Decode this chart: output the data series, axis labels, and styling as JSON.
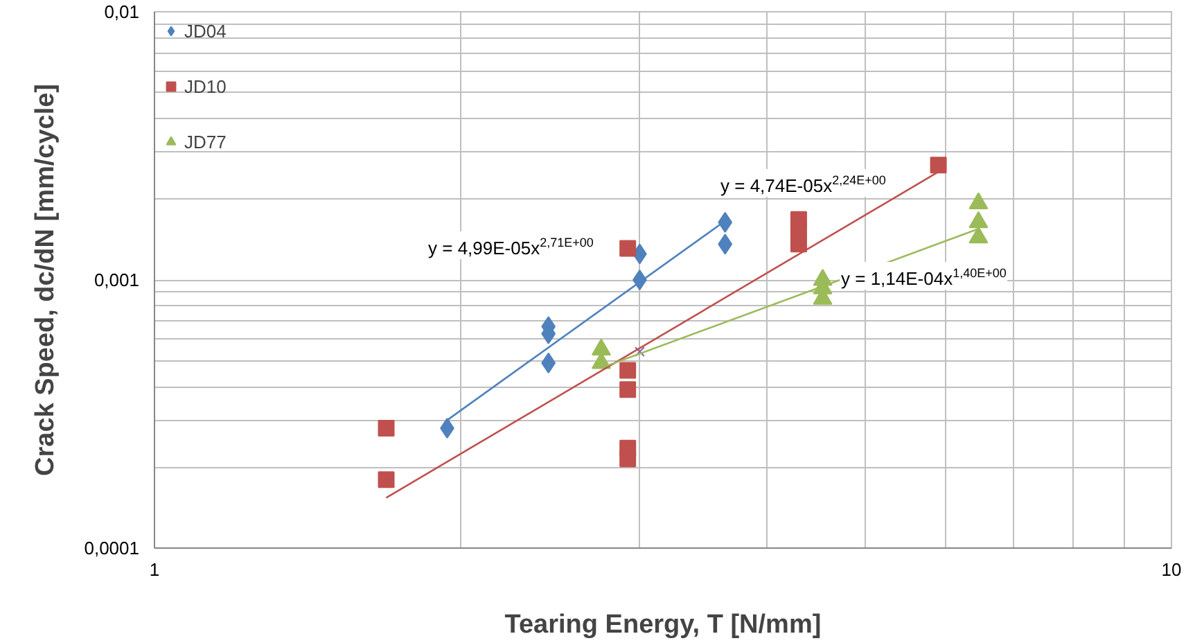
{
  "chart_data": {
    "type": "scatter",
    "xlabel": "Tearing Energy, T [N/mm]",
    "ylabel": "Crack Speed, dc/dN [mm/cycle]",
    "log": "xy",
    "grid": true,
    "legend": "top left",
    "xlim": [
      1,
      10
    ],
    "xticks": [
      1,
      10
    ],
    "ylim": [
      0.0001,
      0.01
    ],
    "yticks": [
      {
        "value": 0.0001,
        "label": "0,0001"
      },
      {
        "value": 0.001,
        "label": "0,001"
      },
      {
        "value": 0.01,
        "label": "0,01"
      }
    ],
    "series": [
      {
        "name": "JD04",
        "color": "#4f81bd",
        "marker": "diamond",
        "x": [
          1.94,
          2.44,
          2.44,
          2.44,
          3.0,
          3.0,
          3.64,
          3.64
        ],
        "values": [
          0.00028,
          0.00067,
          0.00063,
          0.00049,
          0.00125,
          0.001,
          0.00164,
          0.00136
        ]
      },
      {
        "name": "JD10",
        "color": "#c0504d",
        "marker": "square",
        "x": [
          1.69,
          1.69,
          2.92,
          2.92,
          2.92,
          2.92,
          2.92,
          4.3,
          4.3,
          4.3,
          5.9
        ],
        "values": [
          0.00028,
          0.00018,
          0.00131,
          0.00046,
          0.00039,
          0.000236,
          0.000215,
          0.00168,
          0.00153,
          0.00136,
          0.00268
        ]
      },
      {
        "name": "JD77",
        "color": "#9bbb59",
        "marker": "triangle",
        "x": [
          2.75,
          2.75,
          4.54,
          4.54,
          4.54,
          6.46,
          6.46,
          6.46
        ],
        "values": [
          0.00055,
          0.00049,
          0.001,
          0.00093,
          0.00085,
          0.00193,
          0.00164,
          0.00144
        ]
      },
      {
        "color": "#8064a2",
        "marker": "cross",
        "x": [
          3.0
        ],
        "values": [
          0.00054
        ]
      },
      {
        "type": "line",
        "color": "#4f81bd",
        "x": [
          1.94,
          3.64
        ],
        "values": [
          0.0003,
          0.00166
        ]
      },
      {
        "type": "line",
        "color": "#c0504d",
        "x": [
          1.69,
          5.9
        ],
        "values": [
          0.000154,
          0.00253
        ]
      },
      {
        "type": "line",
        "color": "#9bbb59",
        "x": [
          2.75,
          6.46
        ],
        "values": [
          0.00047,
          0.00155
        ]
      }
    ],
    "annotations": [
      "y = 4,99E-05x$^{2,71E+00}$",
      "y = 4,74E-05x$^{2,24E+00}$",
      "y = 1,14E-04x$^{1,40E+00}$"
    ]
  }
}
